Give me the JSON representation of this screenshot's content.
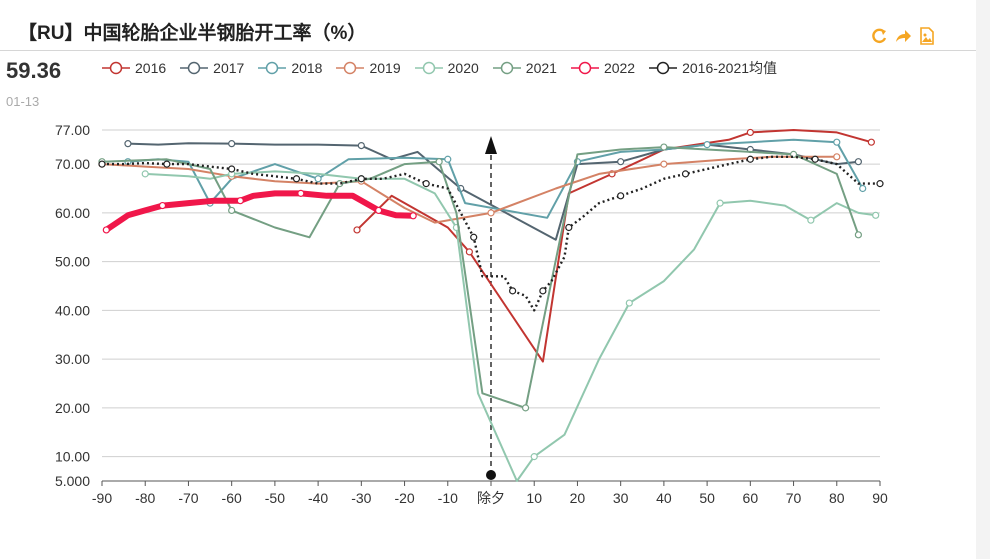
{
  "header": {
    "title": "【RU】中国轮胎企业半钢胎开工率（%）"
  },
  "current": {
    "value": "59.36",
    "date": "01-13"
  },
  "colors": {
    "2016": "#c23531",
    "2017": "#546570",
    "2018": "#61a0a8",
    "2019": "#d48265",
    "2020": "#91c7ae",
    "2021": "#749f83",
    "2022": "#f0174a",
    "2016-2021均值": "#222222",
    "toolbar": "#f5a623"
  },
  "toolbar": {
    "icons": [
      "refresh-icon",
      "share-icon",
      "image-download-icon"
    ]
  },
  "chart_data": {
    "type": "line",
    "title": "【RU】中国轮胎企业半钢胎开工率（%）",
    "xlabel": "",
    "ylabel": "",
    "xlim": [
      -90,
      90
    ],
    "ylim": [
      5,
      77
    ],
    "yticks": [
      5,
      10,
      20,
      30,
      40,
      50,
      60,
      70,
      77
    ],
    "ytick_labels": [
      "5.000",
      "10.00",
      "20.00",
      "30.00",
      "40.00",
      "50.00",
      "60.00",
      "70.00",
      "77.00"
    ],
    "xticks": [
      -90,
      -80,
      -70,
      -60,
      -50,
      -40,
      -30,
      -20,
      -10,
      0,
      10,
      20,
      30,
      40,
      50,
      60,
      70,
      80,
      90
    ],
    "xtick_labels": [
      "-90",
      "-80",
      "-70",
      "-60",
      "-50",
      "-40",
      "-30",
      "-20",
      "-10",
      "除夕",
      "10",
      "20",
      "30",
      "40",
      "50",
      "60",
      "70",
      "80",
      "90"
    ],
    "grid": true,
    "legend_position": "top",
    "annotation": {
      "x": 0,
      "label": "除夕",
      "style": "dashed-arrow"
    },
    "series": [
      {
        "name": "2016",
        "points": [
          [
            -31,
            56.5
          ],
          [
            -23,
            63.5
          ],
          [
            -10,
            57
          ],
          [
            -5,
            52
          ],
          [
            12,
            29.5
          ],
          [
            18,
            64
          ],
          [
            28,
            68
          ],
          [
            40,
            73
          ],
          [
            55,
            75
          ],
          [
            60,
            76.5
          ],
          [
            70,
            77
          ],
          [
            80,
            76.5
          ],
          [
            88,
            74.5
          ]
        ]
      },
      {
        "name": "2017",
        "points": [
          [
            -84,
            74.2
          ],
          [
            -77,
            74
          ],
          [
            -70,
            74.3
          ],
          [
            -60,
            74.2
          ],
          [
            -50,
            74
          ],
          [
            -40,
            74
          ],
          [
            -30,
            73.8
          ],
          [
            -23,
            71
          ],
          [
            -17,
            72.5
          ],
          [
            -7,
            65
          ],
          [
            15,
            54.5
          ],
          [
            20,
            70
          ],
          [
            30,
            70.5
          ],
          [
            40,
            73
          ],
          [
            50,
            74
          ],
          [
            60,
            73
          ],
          [
            70,
            72
          ],
          [
            80,
            70
          ],
          [
            85,
            70.5
          ]
        ]
      },
      {
        "name": "2018",
        "points": [
          [
            -84,
            70.5
          ],
          [
            -77,
            71
          ],
          [
            -70,
            70.5
          ],
          [
            -65,
            62
          ],
          [
            -60,
            67
          ],
          [
            -50,
            70
          ],
          [
            -40,
            67
          ],
          [
            -33,
            71
          ],
          [
            -20,
            71.3
          ],
          [
            -10,
            71
          ],
          [
            -6,
            62
          ],
          [
            13,
            59
          ],
          [
            20,
            70.5
          ],
          [
            30,
            72.5
          ],
          [
            40,
            73
          ],
          [
            50,
            74
          ],
          [
            60,
            74.5
          ],
          [
            70,
            75
          ],
          [
            80,
            74.5
          ],
          [
            86,
            65
          ]
        ]
      },
      {
        "name": "2019",
        "points": [
          [
            -90,
            70
          ],
          [
            -80,
            69.5
          ],
          [
            -70,
            69
          ],
          [
            -60,
            67.5
          ],
          [
            -50,
            66.5
          ],
          [
            -40,
            66
          ],
          [
            -30,
            66.5
          ],
          [
            -20,
            61
          ],
          [
            -13,
            58
          ],
          [
            0,
            60
          ],
          [
            15,
            65
          ],
          [
            25,
            68
          ],
          [
            40,
            70
          ],
          [
            55,
            71
          ],
          [
            65,
            71.5
          ],
          [
            80,
            71.5
          ]
        ]
      },
      {
        "name": "2020",
        "points": [
          [
            -80,
            68
          ],
          [
            -70,
            67.5
          ],
          [
            -65,
            67
          ],
          [
            -60,
            68
          ],
          [
            -50,
            68.5
          ],
          [
            -40,
            68
          ],
          [
            -30,
            67
          ],
          [
            -20,
            67
          ],
          [
            -13,
            64
          ],
          [
            -8,
            57
          ],
          [
            -3,
            23
          ],
          [
            6,
            5
          ],
          [
            10,
            10
          ],
          [
            17,
            14.5
          ],
          [
            25,
            30
          ],
          [
            32,
            41.5
          ],
          [
            40,
            46
          ],
          [
            47,
            52.5
          ],
          [
            53,
            62
          ],
          [
            60,
            62.5
          ],
          [
            68,
            61.5
          ],
          [
            74,
            58.5
          ],
          [
            80,
            62
          ],
          [
            85,
            60
          ],
          [
            89,
            59.5
          ]
        ]
      },
      {
        "name": "2021",
        "points": [
          [
            -90,
            70.5
          ],
          [
            -75,
            71
          ],
          [
            -65,
            69
          ],
          [
            -60,
            60.5
          ],
          [
            -50,
            57
          ],
          [
            -42,
            55
          ],
          [
            -35,
            66
          ],
          [
            -28,
            67
          ],
          [
            -20,
            70
          ],
          [
            -12,
            70.5
          ],
          [
            -8,
            60
          ],
          [
            -2,
            23
          ],
          [
            8,
            20
          ],
          [
            20,
            72
          ],
          [
            30,
            73
          ],
          [
            40,
            73.5
          ],
          [
            50,
            73
          ],
          [
            60,
            72.5
          ],
          [
            70,
            72
          ],
          [
            80,
            68
          ],
          [
            85,
            55.5
          ]
        ]
      },
      {
        "name": "2022",
        "points": [
          [
            -89,
            56.5
          ],
          [
            -84,
            59.5
          ],
          [
            -80,
            60.5
          ],
          [
            -76,
            61.5
          ],
          [
            -70,
            62
          ],
          [
            -64,
            62.5
          ],
          [
            -58,
            62.5
          ],
          [
            -55,
            63.5
          ],
          [
            -50,
            64
          ],
          [
            -44,
            64
          ],
          [
            -38,
            63.5
          ],
          [
            -32,
            63.5
          ],
          [
            -26,
            60.5
          ],
          [
            -22,
            59.5
          ],
          [
            -18,
            59.4
          ]
        ]
      },
      {
        "name": "2016-2021均值",
        "style": "dotted",
        "points": [
          [
            -90,
            70
          ],
          [
            -85,
            70
          ],
          [
            -80,
            70.2
          ],
          [
            -75,
            70
          ],
          [
            -70,
            70
          ],
          [
            -65,
            69.5
          ],
          [
            -60,
            69
          ],
          [
            -55,
            68
          ],
          [
            -50,
            67.5
          ],
          [
            -45,
            67
          ],
          [
            -40,
            66
          ],
          [
            -35,
            66
          ],
          [
            -30,
            67
          ],
          [
            -25,
            67
          ],
          [
            -20,
            68
          ],
          [
            -15,
            66
          ],
          [
            -10,
            65
          ],
          [
            -7,
            60
          ],
          [
            -4,
            55
          ],
          [
            -2,
            47
          ],
          [
            3,
            47
          ],
          [
            5,
            44
          ],
          [
            8,
            43
          ],
          [
            10,
            40
          ],
          [
            12,
            44
          ],
          [
            14,
            46
          ],
          [
            17,
            51
          ],
          [
            18,
            57
          ],
          [
            21,
            59
          ],
          [
            25,
            62
          ],
          [
            30,
            63.5
          ],
          [
            35,
            65
          ],
          [
            40,
            67
          ],
          [
            45,
            68
          ],
          [
            50,
            69
          ],
          [
            55,
            70
          ],
          [
            60,
            71
          ],
          [
            65,
            71.5
          ],
          [
            70,
            71.5
          ],
          [
            75,
            71
          ],
          [
            80,
            70
          ],
          [
            85,
            66
          ],
          [
            90,
            66
          ]
        ]
      }
    ]
  }
}
